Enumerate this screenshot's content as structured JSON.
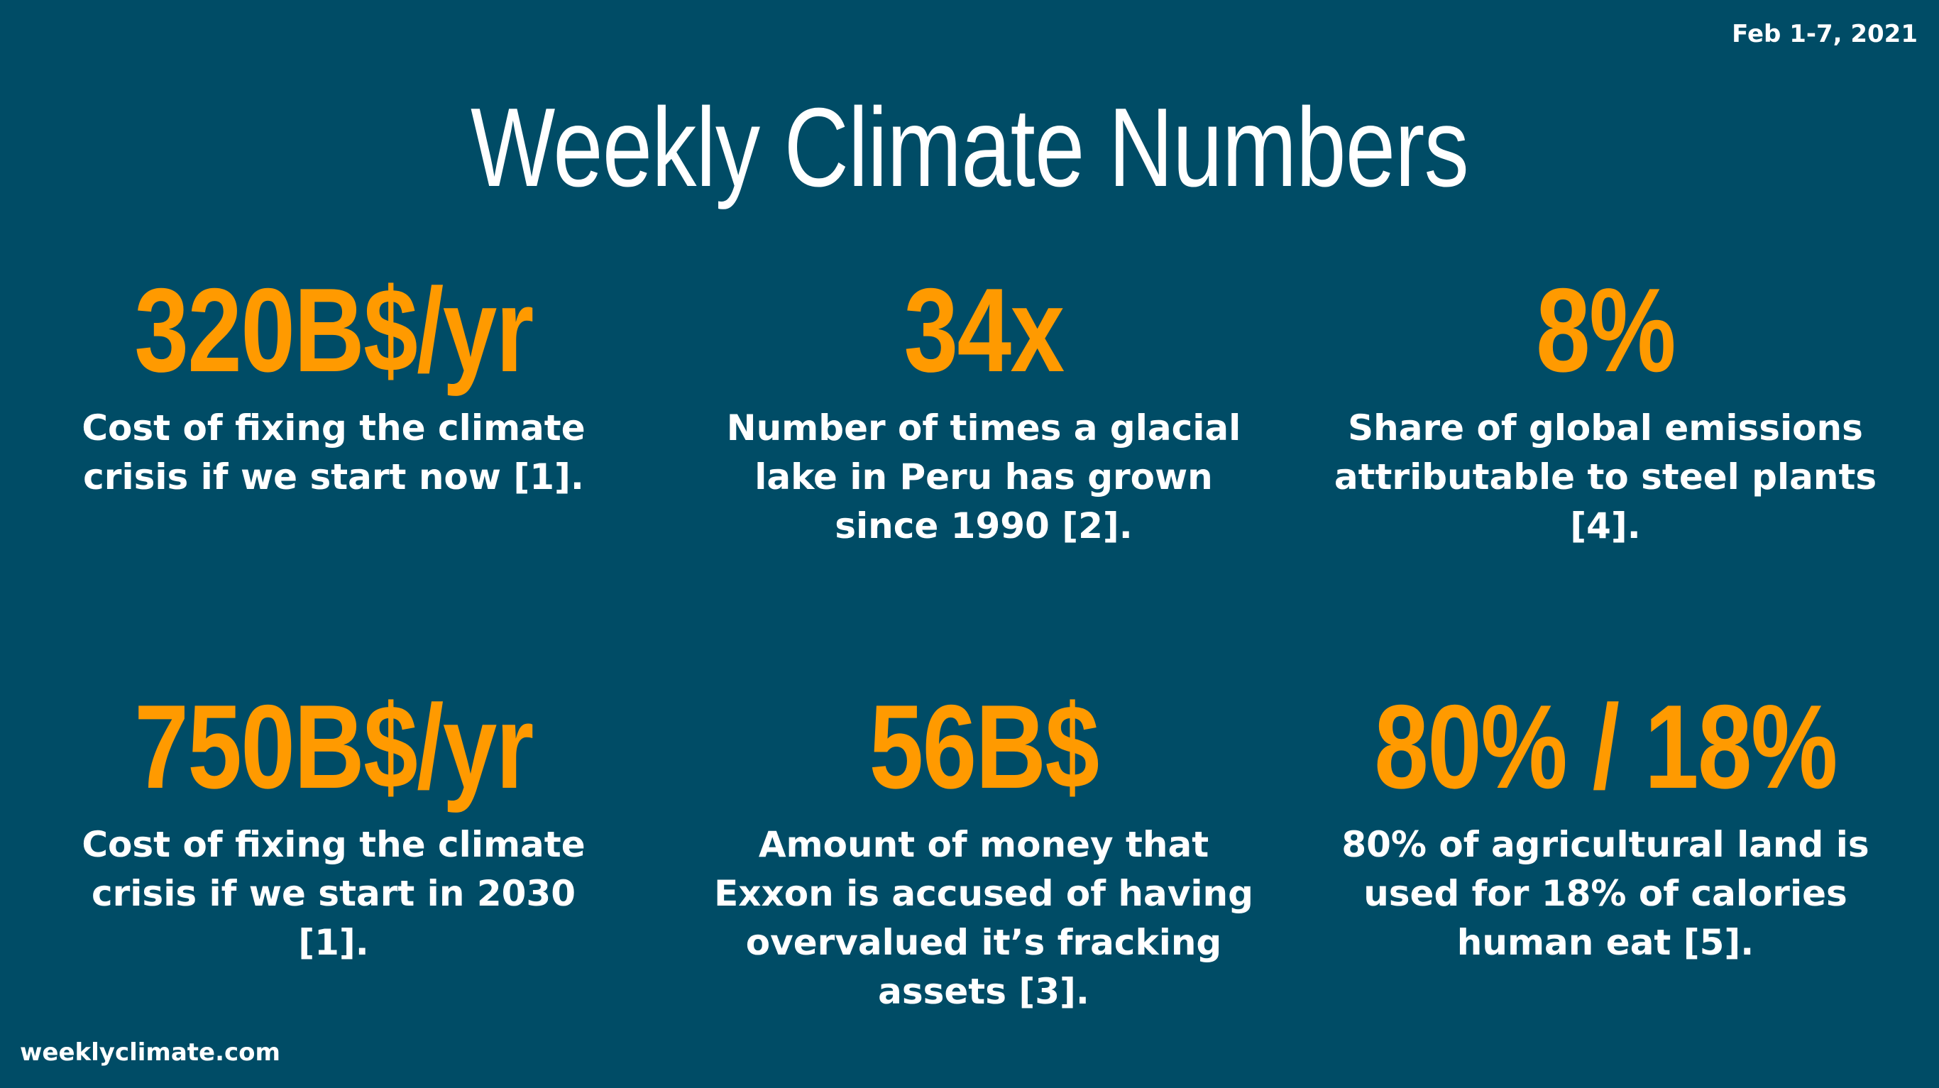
{
  "date_range": "Feb 1-7, 2021",
  "title": "Weekly Climate Numbers",
  "stats": [
    {
      "value": "320B$/yr",
      "description": "Cost of fixing the climate crisis if we start now [1]."
    },
    {
      "value": "34x",
      "description": "Number of times a glacial lake in Peru has grown since 1990 [2]."
    },
    {
      "value": "8%",
      "description": "Share of global emissions attributable to steel plants [4]."
    },
    {
      "value": "750B$/yr",
      "description": "Cost of fixing the climate crisis if we start in 2030 [1]."
    },
    {
      "value": "56B$",
      "description": "Amount of money that Exxon is accused of having overvalued it’s fracking assets [3]."
    },
    {
      "value": "80% / 18%",
      "description": "80% of agricultural land is used for 18% of calories human eat [5]."
    }
  ],
  "footer": {
    "website": "weeklyclimate.com"
  },
  "colors": {
    "background": "#004c66",
    "accent": "#ff9a00",
    "text": "#ffffff"
  }
}
